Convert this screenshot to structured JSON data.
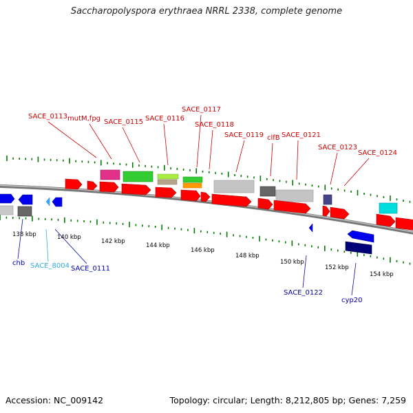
{
  "title": "Saccharopolyspora erythraea NRRL 2338, complete genome",
  "footer": {
    "accession": "Accession: NC_009142",
    "topology": "Topology: circular; Length: 8,212,805 bp; Genes: 7,259"
  },
  "colors": {
    "label_forward": "#cc0000",
    "label_reverse": "#0000aa",
    "label_other": "#33aadd",
    "backbone": "#7a7a7a",
    "ruler_ticks": "#007700"
  },
  "ticks": [
    "138 kbp",
    "140 kbp",
    "142 kbp",
    "144 kbp",
    "146 kbp",
    "148 kbp",
    "150 kbp",
    "152 kbp",
    "154 kbp"
  ],
  "forward_labels": [
    "SACE_0113",
    "mutM,fpg",
    "SACE_0115",
    "SACE_0116",
    "SACE_0117",
    "SACE_0118",
    "SACE_0119",
    "clfB",
    "SACE_0121",
    "SACE_0123",
    "SACE_0124"
  ],
  "reverse_labels": [
    "chb",
    "SACE_8004",
    "SACE_0111",
    "SACE_0122",
    "cyp20"
  ]
}
